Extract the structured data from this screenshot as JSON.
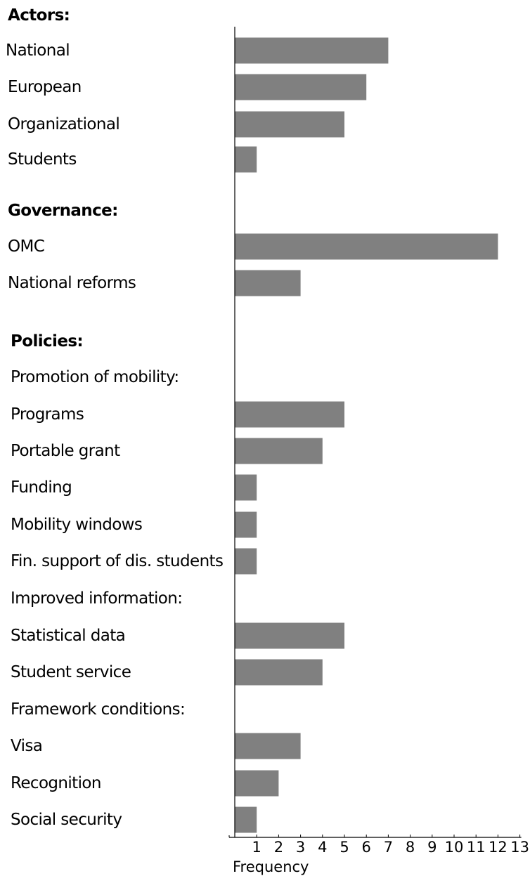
{
  "chart_data": {
    "type": "bar",
    "orientation": "horizontal",
    "xlabel": "Frequency",
    "xlim": [
      0,
      13
    ],
    "ticks": [
      1,
      2,
      3,
      4,
      5,
      6,
      7,
      8,
      9,
      10,
      11,
      12,
      13
    ],
    "grid": false,
    "colors": {
      "bar": "#808080",
      "axis": "#000000"
    },
    "rows": [
      {
        "label": "Actors:",
        "kind": "header",
        "value": null
      },
      {
        "label": "National",
        "kind": "category",
        "value": 7
      },
      {
        "label": "European",
        "kind": "category",
        "value": 6
      },
      {
        "label": "Organizational",
        "kind": "category",
        "value": 5
      },
      {
        "label": "Students",
        "kind": "category",
        "value": 1
      },
      {
        "label": "Governance:",
        "kind": "header",
        "value": null
      },
      {
        "label": "OMC",
        "kind": "category",
        "value": 12
      },
      {
        "label": "National reforms",
        "kind": "category",
        "value": 3
      },
      {
        "label": "Policies:",
        "kind": "header",
        "value": null
      },
      {
        "label": "Promotion of mobility:",
        "kind": "subheader",
        "value": null
      },
      {
        "label": "Programs",
        "kind": "category",
        "value": 5
      },
      {
        "label": "Portable grant",
        "kind": "category",
        "value": 4
      },
      {
        "label": "Funding",
        "kind": "category",
        "value": 1
      },
      {
        "label": "Mobility windows",
        "kind": "category",
        "value": 1
      },
      {
        "label": "Fin. support of dis. students",
        "kind": "category",
        "value": 1
      },
      {
        "label": "Improved information:",
        "kind": "subheader",
        "value": null
      },
      {
        "label": "Statistical data",
        "kind": "category",
        "value": 5
      },
      {
        "label": "Student service",
        "kind": "category",
        "value": 4
      },
      {
        "label": "Framework conditions:",
        "kind": "subheader",
        "value": null
      },
      {
        "label": "Visa",
        "kind": "category",
        "value": 3
      },
      {
        "label": "Recognition",
        "kind": "category",
        "value": 2
      },
      {
        "label": "Social security",
        "kind": "category",
        "value": 1
      }
    ]
  }
}
